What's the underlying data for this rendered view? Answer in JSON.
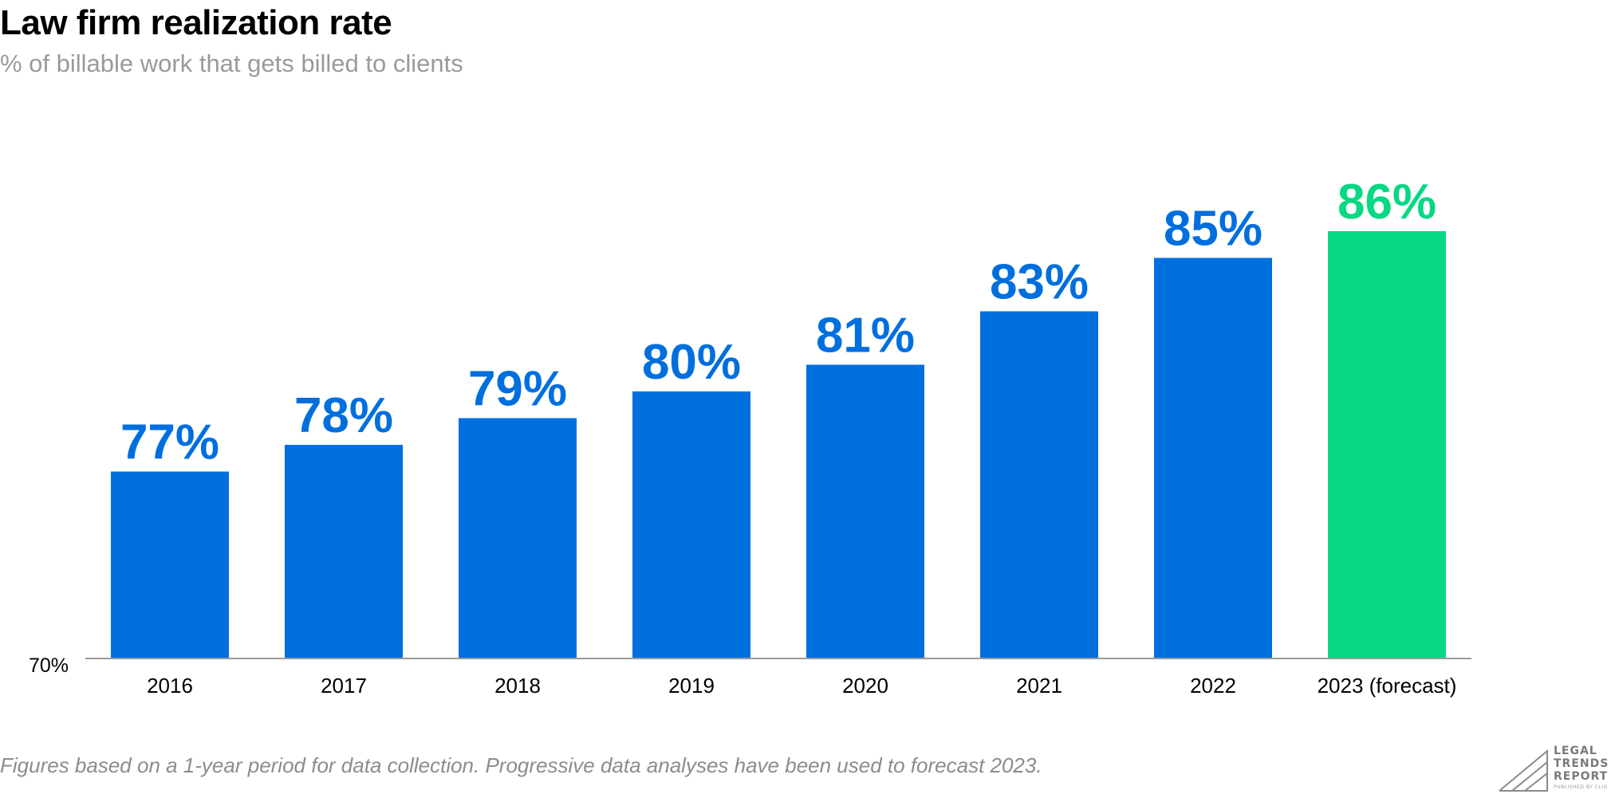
{
  "chart_data": {
    "type": "bar",
    "title": "Law firm realization rate",
    "subtitle": "% of billable work that gets billed to clients",
    "categories": [
      "2016",
      "2017",
      "2018",
      "2019",
      "2020",
      "2021",
      "2022",
      "2023 (forecast)"
    ],
    "values": [
      77,
      78,
      79,
      80,
      81,
      83,
      85,
      86
    ],
    "value_labels": [
      "77%",
      "78%",
      "79%",
      "80%",
      "81%",
      "83%",
      "85%",
      "86%"
    ],
    "forecast_index": 7,
    "ylim": [
      70,
      88
    ],
    "baseline_label": "70%",
    "grid": false,
    "colors": {
      "actual": "#006fde",
      "forecast": "#06d884",
      "axis": "#9a9a9a"
    },
    "footnote": "Figures based on a 1-year period for data collection. Progressive data analyses have been used to forecast 2023."
  },
  "logo": {
    "lines": [
      "LEGAL",
      "TRENDS",
      "REPORT"
    ],
    "small_text": "PUBLISHED BY CLIO"
  }
}
